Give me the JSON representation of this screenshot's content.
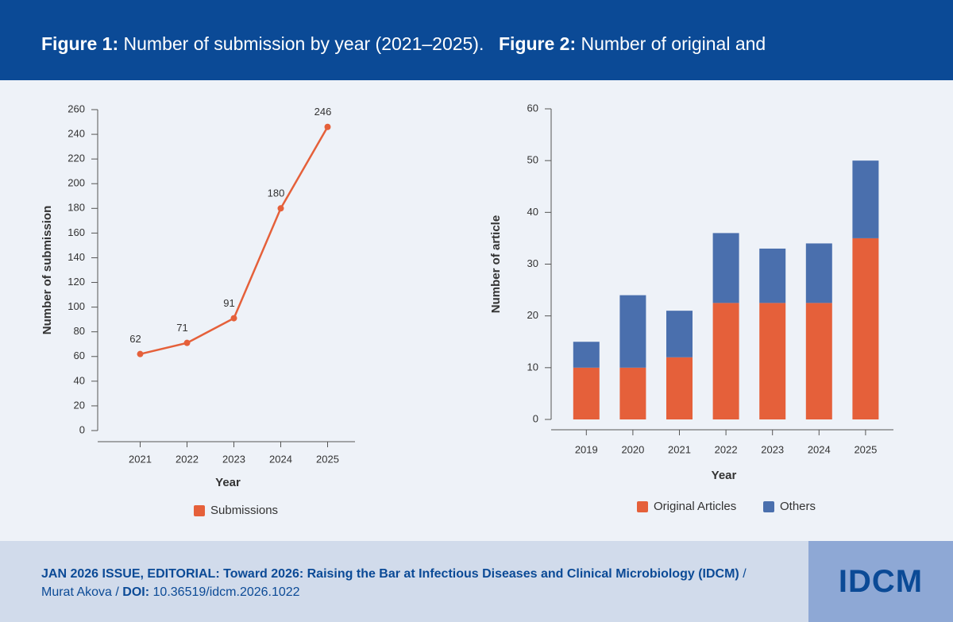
{
  "chart_data": [
    {
      "type": "line",
      "figure_label": "Figure 1:",
      "title": "Number of submission by year (2021–2025).",
      "xlabel": "Year",
      "ylabel": "Number of submission",
      "categories": [
        "2021",
        "2022",
        "2023",
        "2024",
        "2025"
      ],
      "series": [
        {
          "name": "Submissions",
          "color": "#e5603a",
          "values": [
            62,
            71,
            91,
            180,
            246
          ]
        }
      ],
      "ylim": [
        0,
        260
      ],
      "yticks": [
        0,
        20,
        40,
        60,
        80,
        100,
        120,
        140,
        160,
        180,
        200,
        220,
        240,
        260
      ]
    },
    {
      "type": "stacked_bar",
      "figure_label": "Figure 2:",
      "title": "Number of original and",
      "xlabel": "Year",
      "ylabel": "Number of article",
      "categories": [
        "2019",
        "2020",
        "2021",
        "2022",
        "2023",
        "2024",
        "2025"
      ],
      "series": [
        {
          "name": "Original Articles",
          "color": "#e5603a",
          "values": [
            10,
            10,
            12,
            22.5,
            22.5,
            22.5,
            35
          ]
        },
        {
          "name": "Others",
          "color": "#4a6fad",
          "values": [
            5,
            14,
            9,
            13.5,
            10.5,
            11.5,
            15
          ]
        }
      ],
      "ylim": [
        0,
        60
      ],
      "yticks": [
        0,
        10,
        20,
        30,
        40,
        50,
        60
      ]
    }
  ],
  "footer": {
    "issue": "JAN 2026 ISSUE, EDITORIAL:",
    "title": "Toward 2026: Raising the Bar at Infectious Diseases and Clinical Microbiology (IDCM)",
    "separator": "/",
    "author": "Murat Akova",
    "doi_label": "DOI:",
    "doi": "10.36519/idcm.2026.1022",
    "logo": "IDCM"
  }
}
